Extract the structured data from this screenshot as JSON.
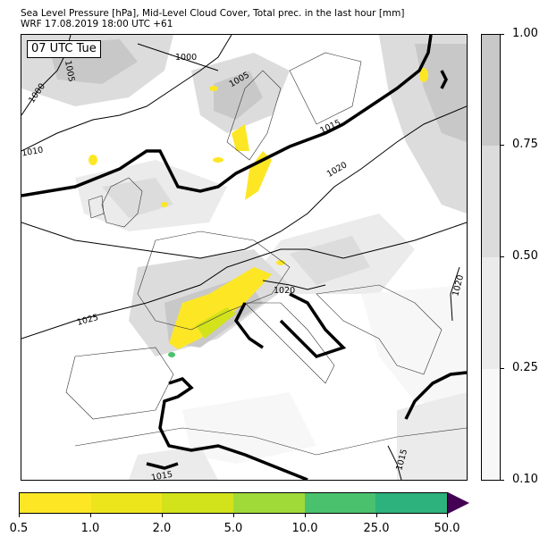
{
  "title": {
    "line1": "Sea Level Pressure [hPa], Mid-Level Cloud Cover, Total prec. in the last hour [mm]",
    "line2": "WRF 17.08.2019 18:00 UTC +61"
  },
  "valid_time": "07 UTC Tue",
  "isobar_labels": [
    "1000",
    "1005",
    "1000",
    "1005",
    "1010",
    "1015",
    "1020",
    "1020",
    "1025",
    "1020",
    "1015",
    "1015"
  ],
  "cloud_colorbar": {
    "ticks": [
      "1.00",
      "0.75",
      "0.50",
      "0.25",
      "0.10"
    ],
    "colors": [
      "#c8c8c8",
      "#dcdcdc",
      "#ebebeb",
      "#f7f7f7"
    ]
  },
  "precip_colorbar": {
    "ticks": [
      "0.5",
      "1.0",
      "2.0",
      "5.0",
      "10.0",
      "25.0",
      "50.0"
    ],
    "colors": [
      "#fde725",
      "#ede51b",
      "#d2e21b",
      "#a0da39",
      "#4ac16d",
      "#2db27d",
      "#3b528b"
    ],
    "extend_color": "#440154"
  }
}
